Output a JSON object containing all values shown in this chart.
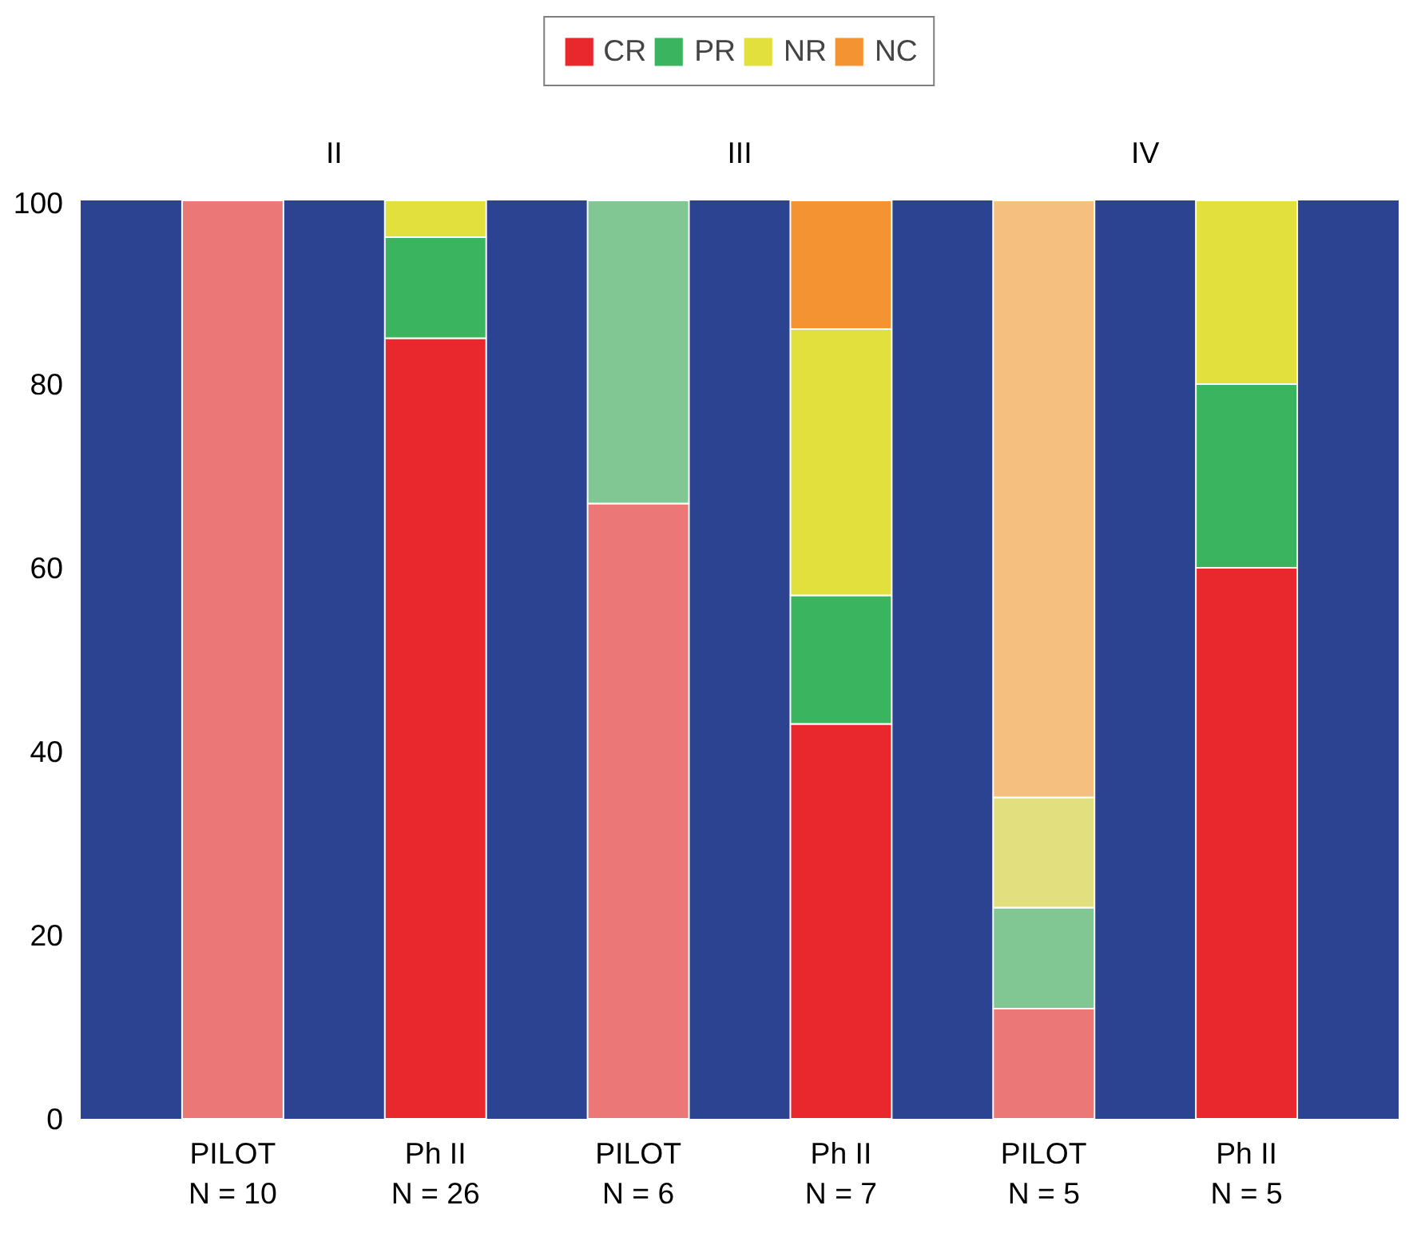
{
  "chart_data": {
    "type": "bar",
    "stacked": true,
    "categories": [
      "PILOT\nN = 10",
      "Ph II\nN = 26",
      "PILOT\nN = 6",
      "Ph II\nN = 7",
      "PILOT\nN = 5",
      "Ph II\nN = 5"
    ],
    "series": [
      {
        "name": "CR",
        "color": "#e8282d",
        "colors": [
          "#ec7777",
          "#e8282d",
          "#ec7777",
          "#e8282d",
          "#ec7777",
          "#e8282d"
        ],
        "values": [
          100,
          85,
          67,
          43,
          12,
          60
        ]
      },
      {
        "name": "PR",
        "color": "#3ab45e",
        "colors": [
          "#80c793",
          "#3ab45e",
          "#80c793",
          "#3ab45e",
          "#80c793",
          "#3ab45e"
        ],
        "values": [
          null,
          11,
          33,
          14,
          11,
          20
        ]
      },
      {
        "name": "NR",
        "color": "#e2e03c",
        "colors": [
          "#e2e07e",
          "#e2e03c",
          "#e2e07e",
          "#e2e03c",
          "#e2e07e",
          "#e2e03c"
        ],
        "values": [
          null,
          4,
          null,
          29,
          12,
          20
        ]
      },
      {
        "name": "NC",
        "color": "#f39331",
        "colors": [
          "#f5bf7f",
          "#f39331",
          "#f5bf7f",
          "#f39331",
          "#f5bf7f",
          "#f39331"
        ],
        "values": [
          null,
          null,
          null,
          14,
          65,
          null
        ]
      }
    ],
    "annotations": [
      "II",
      "III",
      "IV"
    ],
    "ylim": [
      0,
      100
    ],
    "yticks": [
      0,
      20,
      40,
      60,
      80,
      100
    ],
    "grid": false,
    "legend": "top"
  }
}
